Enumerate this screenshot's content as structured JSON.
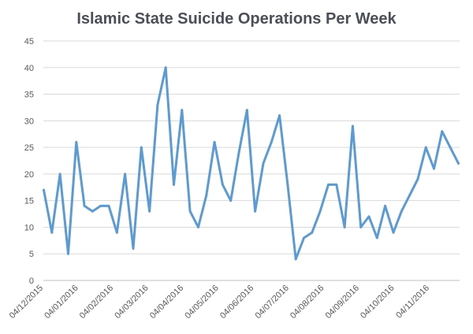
{
  "chart_data": {
    "type": "line",
    "title": "Islamic State Suicide Operations Per Week",
    "xlabel": "",
    "ylabel": "",
    "ylim": [
      0,
      45
    ],
    "yticks": [
      "0",
      "5",
      "10",
      "15",
      "20",
      "25",
      "30",
      "35",
      "40",
      "45"
    ],
    "xtick_labels": [
      "04/12/2015",
      "04/01/2016",
      "04/02/2016",
      "04/03/2016",
      "04/04/2016",
      "04/05/2016",
      "04/06/2016",
      "04/07/2016",
      "04/08/2016",
      "04/09/2016",
      "04/10/2016",
      "04/11/2016"
    ],
    "grid": true,
    "color": "#5b9bd5",
    "series": [
      {
        "values": [
          17,
          9,
          20,
          5,
          26,
          14,
          13,
          14,
          14,
          9,
          20,
          6,
          25,
          13,
          33,
          40,
          18,
          32,
          13,
          10,
          16,
          26,
          18,
          15,
          24,
          32,
          13,
          22,
          26,
          31,
          18,
          4,
          8,
          9,
          13,
          18,
          18,
          10,
          29,
          10,
          12,
          8,
          14,
          9,
          13,
          16,
          19,
          25,
          21,
          28,
          25,
          22
        ]
      }
    ]
  }
}
